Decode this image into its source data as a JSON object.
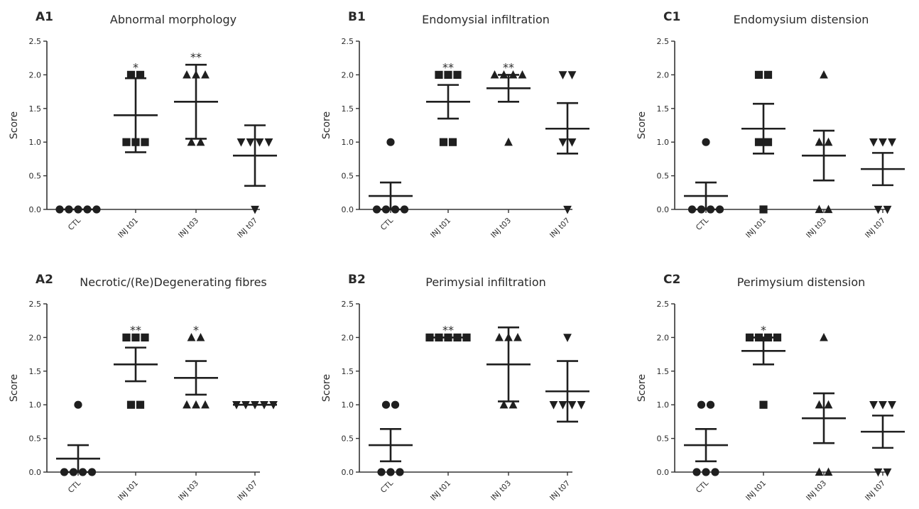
{
  "chart_data": [
    {
      "type": "scatter",
      "panel": "A1",
      "title": "Abnormal morphology",
      "ylabel": "Score",
      "ylim": [
        0,
        2.5
      ],
      "yticks": [
        "0.0",
        "0.5",
        "1.0",
        "1.5",
        "2.0",
        "2.5"
      ],
      "categories": [
        "CTL",
        "INJ t01",
        "INJ t03",
        "INJ t07"
      ],
      "series": [
        {
          "category": "CTL",
          "marker": "circle",
          "points": [
            0,
            0,
            0,
            0,
            0
          ],
          "mean": 0,
          "error": [
            0,
            0
          ],
          "sig": ""
        },
        {
          "category": "INJ t01",
          "marker": "square",
          "points": [
            2,
            2,
            1,
            1,
            1
          ],
          "mean": 1.4,
          "error": [
            0.85,
            1.95
          ],
          "sig": "*"
        },
        {
          "category": "INJ t03",
          "marker": "triangle-up",
          "points": [
            2,
            2,
            2,
            1,
            1
          ],
          "mean": 1.6,
          "error": [
            1.05,
            2.15
          ],
          "sig": "**"
        },
        {
          "category": "INJ t07",
          "marker": "triangle-down",
          "points": [
            1,
            1,
            1,
            1,
            0
          ],
          "mean": 0.8,
          "error": [
            0.35,
            1.25
          ],
          "sig": ""
        }
      ]
    },
    {
      "type": "scatter",
      "panel": "B1",
      "title": "Endomysial infiltration",
      "ylabel": "Score",
      "ylim": [
        0,
        2.5
      ],
      "yticks": [
        "0.0",
        "0.5",
        "1.0",
        "1.5",
        "2.0",
        "2.5"
      ],
      "categories": [
        "CTL",
        "INJ t01",
        "INJ t03",
        "INJ t07"
      ],
      "series": [
        {
          "category": "CTL",
          "marker": "circle",
          "points": [
            1,
            0,
            0,
            0,
            0
          ],
          "mean": 0.2,
          "error": [
            0,
            0.4
          ],
          "sig": ""
        },
        {
          "category": "INJ t01",
          "marker": "square",
          "points": [
            2,
            2,
            2,
            1,
            1
          ],
          "mean": 1.6,
          "error": [
            1.35,
            1.85
          ],
          "sig": "**"
        },
        {
          "category": "INJ t03",
          "marker": "triangle-up",
          "points": [
            2,
            2,
            2,
            2,
            1
          ],
          "mean": 1.8,
          "error": [
            1.6,
            2.0
          ],
          "sig": "**"
        },
        {
          "category": "INJ t07",
          "marker": "triangle-down",
          "points": [
            2,
            2,
            1,
            1,
            0
          ],
          "mean": 1.2,
          "error": [
            0.83,
            1.58
          ],
          "sig": ""
        }
      ]
    },
    {
      "type": "scatter",
      "panel": "C1",
      "title": "Endomysium distension",
      "ylabel": "Score",
      "ylim": [
        0,
        2.5
      ],
      "yticks": [
        "0.0",
        "0.5",
        "1.0",
        "1.5",
        "2.0",
        "2.5"
      ],
      "categories": [
        "CTL",
        "INJ t01",
        "INJ t03",
        "INJ t07"
      ],
      "series": [
        {
          "category": "CTL",
          "marker": "circle",
          "points": [
            1,
            0,
            0,
            0,
            0
          ],
          "mean": 0.2,
          "error": [
            0,
            0.4
          ],
          "sig": ""
        },
        {
          "category": "INJ t01",
          "marker": "square",
          "points": [
            2,
            2,
            1,
            1,
            0
          ],
          "mean": 1.2,
          "error": [
            0.83,
            1.57
          ],
          "sig": ""
        },
        {
          "category": "INJ t03",
          "marker": "triangle-up",
          "points": [
            2,
            1,
            1,
            0,
            0
          ],
          "mean": 0.8,
          "error": [
            0.43,
            1.17
          ],
          "sig": ""
        },
        {
          "category": "INJ t07",
          "marker": "triangle-down",
          "points": [
            1,
            1,
            1,
            0,
            0
          ],
          "mean": 0.6,
          "error": [
            0.36,
            0.84
          ],
          "sig": ""
        }
      ]
    },
    {
      "type": "scatter",
      "panel": "A2",
      "title": "Necrotic/(Re)Degenerating fibres",
      "ylabel": "Score",
      "ylim": [
        0,
        2.5
      ],
      "yticks": [
        "0.0",
        "0.5",
        "1.0",
        "1.5",
        "2.0",
        "2.5"
      ],
      "categories": [
        "CTL",
        "INJ t01",
        "INJ t03",
        "INJ t07"
      ],
      "series": [
        {
          "category": "CTL",
          "marker": "circle",
          "points": [
            1,
            0,
            0,
            0,
            0
          ],
          "mean": 0.2,
          "error": [
            0,
            0.4
          ],
          "sig": ""
        },
        {
          "category": "INJ t01",
          "marker": "square",
          "points": [
            2,
            2,
            2,
            1,
            1
          ],
          "mean": 1.6,
          "error": [
            1.35,
            1.85
          ],
          "sig": "**"
        },
        {
          "category": "INJ t03",
          "marker": "triangle-up",
          "points": [
            2,
            2,
            1,
            1,
            1
          ],
          "mean": 1.4,
          "error": [
            1.15,
            1.65
          ],
          "sig": "*"
        },
        {
          "category": "INJ t07",
          "marker": "triangle-down",
          "points": [
            1,
            1,
            1,
            1,
            1
          ],
          "mean": 1.0,
          "error": [
            1.0,
            1.0
          ],
          "sig": ""
        }
      ]
    },
    {
      "type": "scatter",
      "panel": "B2",
      "title": "Perimysial infiltration",
      "ylabel": "Score",
      "ylim": [
        0,
        2.5
      ],
      "yticks": [
        "0.0",
        "0.5",
        "1.0",
        "1.5",
        "2.0",
        "2.5"
      ],
      "categories": [
        "CTL",
        "INJ t01",
        "INJ t03",
        "INJ t07"
      ],
      "series": [
        {
          "category": "CTL",
          "marker": "circle",
          "points": [
            1,
            1,
            0,
            0,
            0
          ],
          "mean": 0.4,
          "error": [
            0.16,
            0.64
          ],
          "sig": ""
        },
        {
          "category": "INJ t01",
          "marker": "square",
          "points": [
            2,
            2,
            2,
            2,
            2
          ],
          "mean": 2.0,
          "error": [
            2.0,
            2.0
          ],
          "sig": "**"
        },
        {
          "category": "INJ t03",
          "marker": "triangle-up",
          "points": [
            2,
            2,
            2,
            1,
            1
          ],
          "mean": 1.6,
          "error": [
            1.05,
            2.15
          ],
          "sig": ""
        },
        {
          "category": "INJ t07",
          "marker": "triangle-down",
          "points": [
            2,
            1,
            1,
            1,
            1
          ],
          "mean": 1.2,
          "error": [
            0.75,
            1.65
          ],
          "sig": ""
        }
      ]
    },
    {
      "type": "scatter",
      "panel": "C2",
      "title": "Perimysium distension",
      "ylabel": "Score",
      "ylim": [
        0,
        2.5
      ],
      "yticks": [
        "0.0",
        "0.5",
        "1.0",
        "1.5",
        "2.0",
        "2.5"
      ],
      "categories": [
        "CTL",
        "INJ t01",
        "INJ t03",
        "INJ t07"
      ],
      "series": [
        {
          "category": "CTL",
          "marker": "circle",
          "points": [
            1,
            1,
            0,
            0,
            0
          ],
          "mean": 0.4,
          "error": [
            0.16,
            0.64
          ],
          "sig": ""
        },
        {
          "category": "INJ t01",
          "marker": "square",
          "points": [
            2,
            2,
            2,
            2,
            1
          ],
          "mean": 1.8,
          "error": [
            1.6,
            2.0
          ],
          "sig": "*"
        },
        {
          "category": "INJ t03",
          "marker": "triangle-up",
          "points": [
            2,
            1,
            1,
            0,
            0
          ],
          "mean": 0.8,
          "error": [
            0.43,
            1.17
          ],
          "sig": ""
        },
        {
          "category": "INJ t07",
          "marker": "triangle-down",
          "points": [
            1,
            1,
            1,
            0,
            0
          ],
          "mean": 0.6,
          "error": [
            0.36,
            0.84
          ],
          "sig": ""
        }
      ]
    }
  ],
  "colors": {
    "ink": "#1f1f1f",
    "axis": "#333333"
  }
}
